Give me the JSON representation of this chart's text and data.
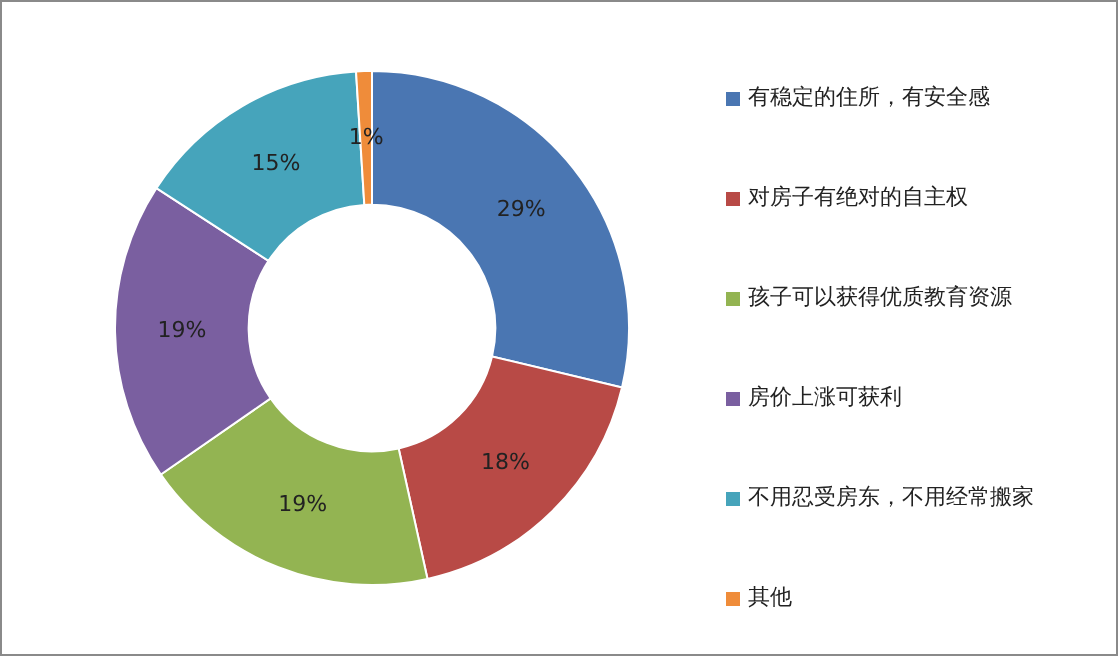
{
  "chart_data": {
    "type": "donut",
    "categories": [
      "有稳定的住所，有安全感",
      "对房子有绝对的自主权",
      "孩子可以获得优质教育资源",
      "房价上涨可获利",
      "不用忍受房东，不用经常搬家",
      "其他"
    ],
    "values": [
      29,
      18,
      19,
      19,
      15,
      1
    ],
    "value_labels": [
      "29%",
      "18%",
      "19%",
      "19%",
      "15%",
      "1%"
    ],
    "colors": [
      "#4a76b2",
      "#b84a46",
      "#93b452",
      "#7a5fa0",
      "#46a4bb",
      "#ef8c3a"
    ],
    "legend": "right"
  }
}
